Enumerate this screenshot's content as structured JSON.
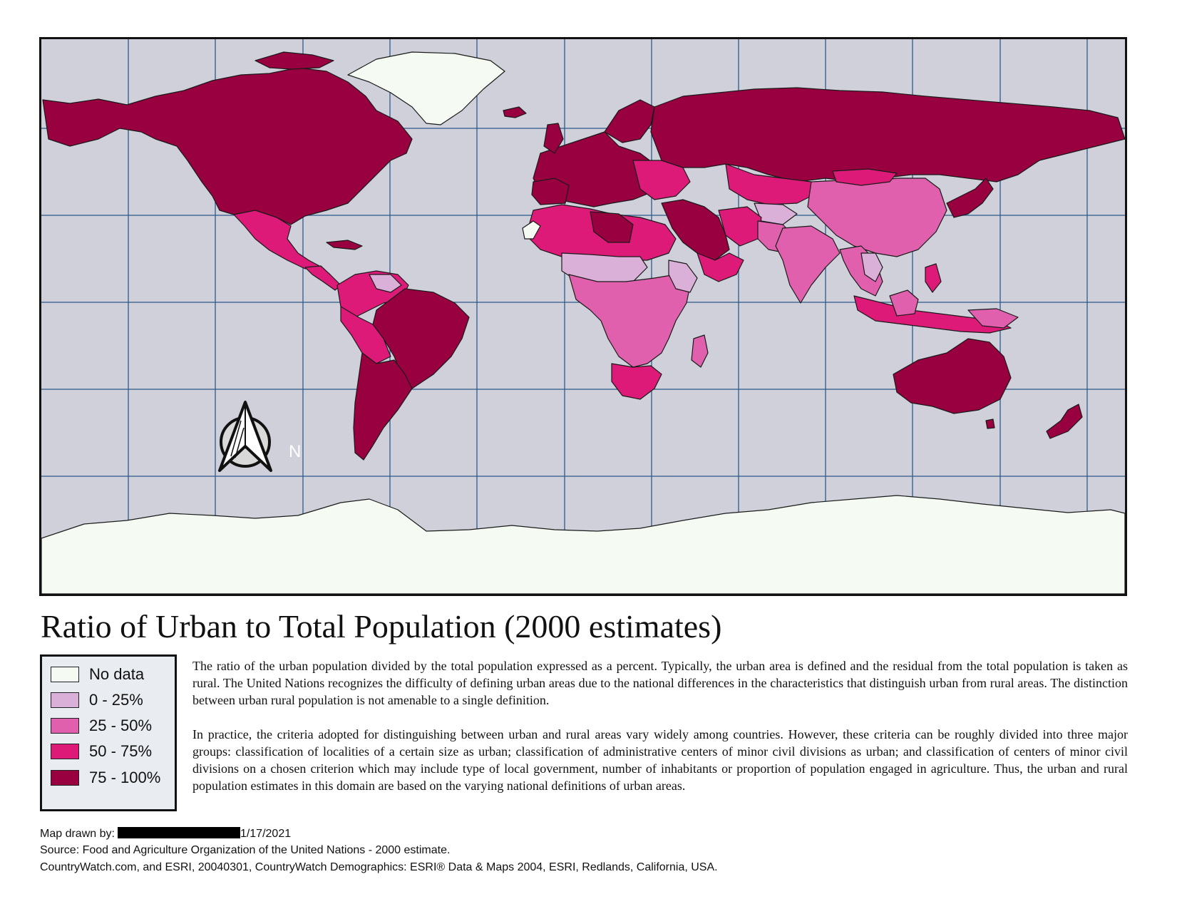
{
  "map": {
    "title": "Ratio of Urban to Total Population (2000 estimates)",
    "north_label": "N",
    "colors": {
      "ocean": "#cfd0da",
      "grid": "#2c5a8c",
      "no_data": "#f5faf2",
      "c0_25": "#dbb0d8",
      "c25_50": "#e160ad",
      "c50_75": "#dd1a78",
      "c75_100": "#99003f"
    }
  },
  "legend": {
    "items": [
      {
        "label": "No data",
        "color": "#f5faf2"
      },
      {
        "label": "0 - 25%",
        "color": "#dbb0d8"
      },
      {
        "label": "25 - 50%",
        "color": "#e160ad"
      },
      {
        "label": "50 - 75%",
        "color": "#dd1a78"
      },
      {
        "label": "75 - 100%",
        "color": "#99003f"
      }
    ]
  },
  "description": {
    "p1": "The ratio of the urban population divided by the total population expressed as a percent. Typically, the urban area is defined and the residual from the total population is taken as rural. The United Nations recognizes the difficulty of defining urban areas due to the national differences in the characteristics that distinguish urban from rural areas. The distinction between urban rural population is not amenable to a single definition.",
    "p2": "In practice, the criteria adopted for distinguishing between urban and rural areas vary widely among countries. However, these criteria can be roughly divided into three major groups: classification of localities of a certain size as urban; classification of administrative centers of minor civil divisions as urban; and classification of centers of minor civil divisions on a chosen criterion which may include type of local government, number of inhabitants or proportion of population engaged in agriculture. Thus, the urban and rural population estimates in this domain are based on the varying national definitions of urban areas."
  },
  "footer": {
    "drawn_by_label": "Map drawn by:",
    "date": "1/17/2021",
    "source": "Source: Food and Agriculture Organization of the United Nations - 2000 estimate.",
    "credits": "CountryWatch.com, and ESRI, 20040301, CountryWatch Demographics: ESRI® Data & Maps 2004, ESRI, Redlands, California, USA."
  }
}
